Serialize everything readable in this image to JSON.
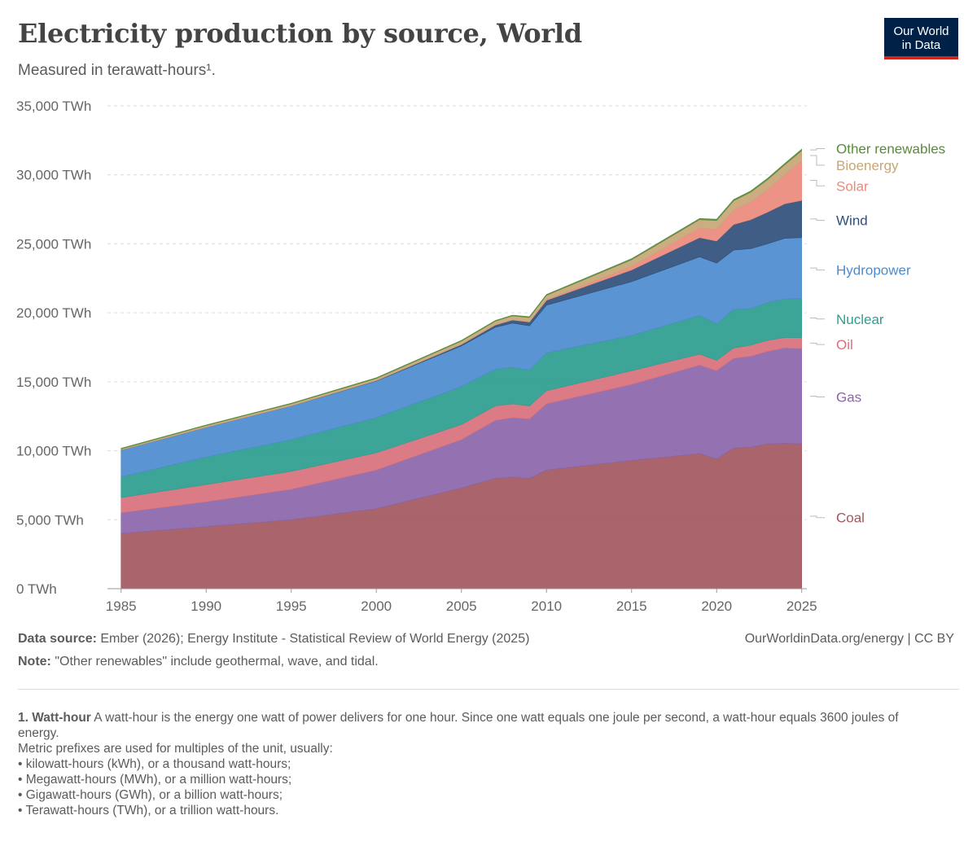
{
  "header": {
    "title": "Electricity production by source, World",
    "subtitle": "Measured in terawatt-hours¹.",
    "logo_line1": "Our World",
    "logo_line2": "in Data"
  },
  "footer": {
    "source_label": "Data source:",
    "source_text": "Ember (2026); Energy Institute - Statistical Review of World Energy (2025)",
    "credit": "OurWorldinData.org/energy | CC BY",
    "note_label": "Note:",
    "note_text": "\"Other renewables\" include geothermal, wave, and tidal."
  },
  "footnote": {
    "head": "1. Watt-hour",
    "text": "A watt-hour is the energy one watt of power delivers for one hour. Since one watt equals one joule per second, a watt-hour equals 3600 joules of energy.",
    "line2": "Metric prefixes are used for multiples of the unit, usually:",
    "items": [
      "kilowatt-hours (kWh), or a thousand watt-hours;",
      "Megawatt-hours (MWh), or a million watt-hours;",
      "Gigawatt-hours (GWh), or a billion watt-hours;",
      "Terawatt-hours (TWh), or a trillion watt-hours."
    ]
  },
  "chart_data": {
    "type": "area",
    "stacked": true,
    "title": "Electricity production by source, World",
    "subtitle": "Measured in terawatt-hours¹.",
    "x": [
      1985,
      1990,
      1995,
      2000,
      2005,
      2007,
      2008,
      2009,
      2010,
      2015,
      2019,
      2020,
      2021,
      2022,
      2023,
      2024,
      2025
    ],
    "x_ticks": [
      1985,
      1990,
      1995,
      2000,
      2005,
      2010,
      2015,
      2020,
      2025
    ],
    "x_tick_labels": [
      "1985",
      "1990",
      "1995",
      "2000",
      "2005",
      "2010",
      "2015",
      "2020",
      "2025"
    ],
    "xlim": [
      1984.2,
      2025.3
    ],
    "ylim": [
      0,
      35000
    ],
    "y_ticks": [
      0,
      5000,
      10000,
      15000,
      20000,
      25000,
      30000,
      35000
    ],
    "y_tick_labels": [
      "0 TWh",
      "5,000 TWh",
      "10,000 TWh",
      "15,000 TWh",
      "20,000 TWh",
      "25,000 TWh",
      "30,000 TWh",
      "35,000 TWh"
    ],
    "grid": true,
    "legend": "right",
    "series": [
      {
        "name": "Coal",
        "color": "#a2575f",
        "label_value": 5150,
        "values": [
          4000,
          4500,
          5000,
          5800,
          7300,
          8000,
          8100,
          8000,
          8600,
          9300,
          9800,
          9400,
          10200,
          10250,
          10500,
          10550,
          10500
        ]
      },
      {
        "name": "Gas",
        "color": "#8b65a9",
        "label_value": 13900,
        "values": [
          1500,
          1800,
          2200,
          2800,
          3500,
          4200,
          4300,
          4300,
          4800,
          5500,
          6400,
          6400,
          6500,
          6600,
          6700,
          6900,
          6900
        ]
      },
      {
        "name": "Oil",
        "color": "#d7707c",
        "label_value": 17700,
        "values": [
          1100,
          1250,
          1300,
          1250,
          1100,
          1050,
          1000,
          950,
          950,
          1000,
          800,
          750,
          750,
          800,
          800,
          750,
          800
        ]
      },
      {
        "name": "Nuclear",
        "color": "#2d9d8e",
        "label_value": 19550,
        "values": [
          1500,
          2000,
          2300,
          2550,
          2750,
          2650,
          2650,
          2600,
          2750,
          2550,
          2800,
          2650,
          2800,
          2650,
          2750,
          2800,
          2850
        ]
      },
      {
        "name": "Hydropower",
        "color": "#4c8bcf",
        "label_value": 23100,
        "values": [
          1950,
          2150,
          2450,
          2650,
          2950,
          3050,
          3200,
          3200,
          3450,
          3900,
          4250,
          4400,
          4300,
          4350,
          4250,
          4400,
          4400
        ]
      },
      {
        "name": "Wind",
        "color": "#2f4f7b",
        "label_value": 26700,
        "values": [
          5,
          5,
          10,
          30,
          100,
          170,
          220,
          280,
          350,
          850,
          1400,
          1600,
          1850,
          2100,
          2300,
          2500,
          2700
        ]
      },
      {
        "name": "Solar",
        "color": "#ec8a7c",
        "label_value": 29200,
        "values": [
          1,
          1,
          1,
          1,
          4,
          10,
          20,
          25,
          35,
          260,
          700,
          850,
          1050,
          1300,
          1650,
          2100,
          2900
        ]
      },
      {
        "name": "Bioenergy",
        "color": "#c7a676",
        "label_value": 30700,
        "values": [
          80,
          120,
          140,
          160,
          240,
          260,
          280,
          300,
          330,
          480,
          600,
          640,
          670,
          690,
          700,
          720,
          700
        ]
      },
      {
        "name": "Other renewables",
        "color": "#5a8a3c",
        "label_value": 31900,
        "values": [
          40,
          45,
          45,
          50,
          55,
          60,
          60,
          65,
          65,
          80,
          90,
          95,
          95,
          95,
          100,
          105,
          110
        ]
      }
    ]
  }
}
